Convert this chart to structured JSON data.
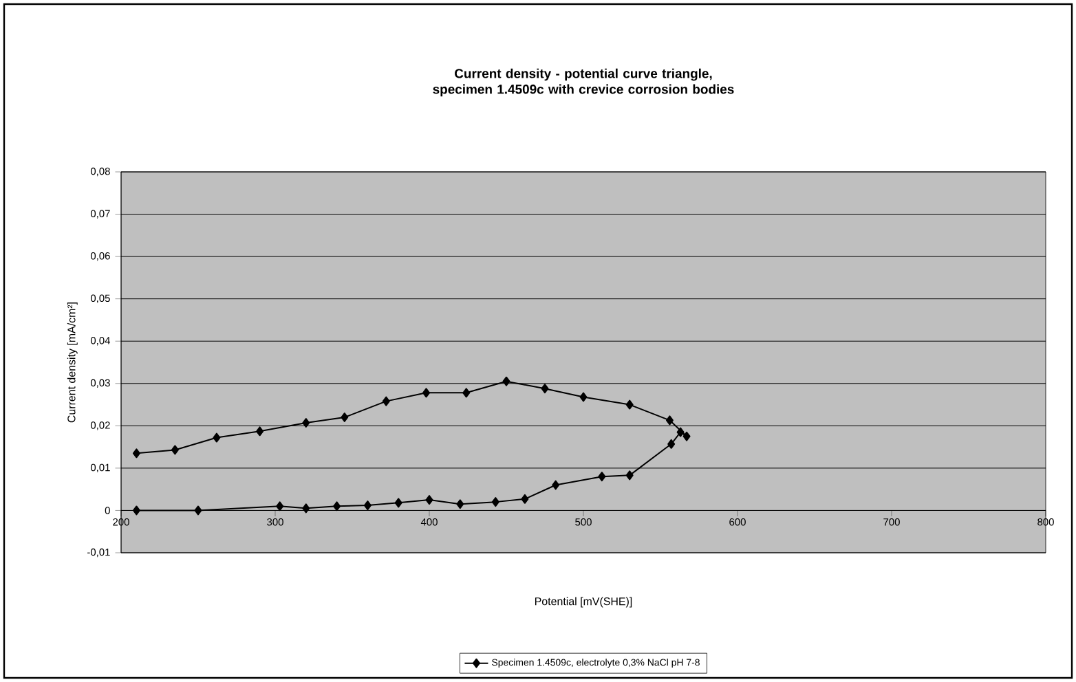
{
  "chart_data": {
    "type": "line",
    "title": "Current density - potential curve triangle, specimen 1.4509c with crevice corrosion bodies",
    "xlabel": "Potential [mV(SHE)]",
    "ylabel": "Current density [mA/cm²]",
    "xlim": [
      200,
      800
    ],
    "xticks": [
      200,
      300,
      400,
      500,
      600,
      700,
      800
    ],
    "ylim": [
      -0.01,
      0.08
    ],
    "yticks": [
      {
        "value": -0.01,
        "label": "-0,01"
      },
      0,
      {
        "value": 0.01,
        "label": "0,01"
      },
      {
        "value": 0.02,
        "label": "0,02"
      },
      {
        "value": 0.03,
        "label": "0,03"
      },
      {
        "value": 0.04,
        "label": "0,04"
      },
      {
        "value": 0.05,
        "label": "0,05"
      },
      {
        "value": 0.06,
        "label": "0,06"
      },
      {
        "value": 0.07,
        "label": "0,07"
      },
      {
        "value": 0.08,
        "label": "0,08"
      }
    ],
    "grid": "y",
    "legend": "bottom",
    "marker": "diamond",
    "line_style": "solid",
    "series": [
      {
        "name": "Specimen 1.4509c, electrolyte 0,3% NaCl pH 7-8",
        "color": "#000000",
        "x": [
          210,
          250,
          303,
          320,
          340,
          360,
          380,
          400,
          420,
          443,
          462,
          482,
          512,
          530,
          557,
          563,
          567,
          556,
          530,
          500,
          475,
          450,
          424,
          398,
          372,
          345,
          320,
          290,
          262,
          235,
          210
        ],
        "values": [
          0,
          0,
          0.001,
          0.0005,
          0.001,
          0.0012,
          0.0018,
          0.0025,
          0.0015,
          0.002,
          0.0027,
          0.006,
          0.008,
          0.0083,
          0.0157,
          0.0185,
          0.0175,
          0.0213,
          0.025,
          0.0268,
          0.0288,
          0.0305,
          0.0278,
          0.0278,
          0.0258,
          0.022,
          0.0207,
          0.0187,
          0.0172,
          0.0143,
          0.0135
        ]
      }
    ]
  }
}
